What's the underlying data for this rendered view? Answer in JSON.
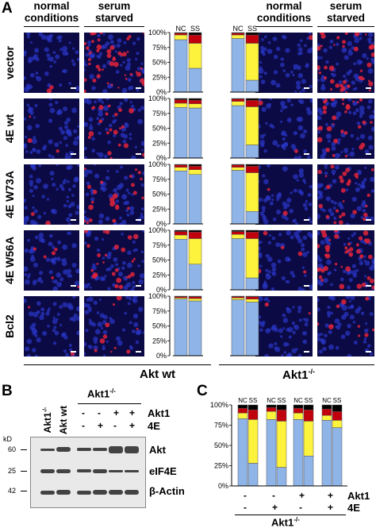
{
  "panel_letters": {
    "a": "A",
    "b": "B",
    "c": "C"
  },
  "panelA": {
    "left_headers": [
      "normal\nconditions",
      "serum\nstarved"
    ],
    "right_headers": [
      "normal\nconditions",
      "serum\nstarved"
    ],
    "rows": [
      "vector",
      "4E wt",
      "4E W73A",
      "4E W56A",
      "Bcl2"
    ],
    "group_labels": {
      "left": "Akt wt",
      "right": "Akt1-/-"
    },
    "colors": {
      "blue": "#8fb4e8",
      "yellow": "#fdf33c",
      "red": "#c0000c",
      "black": "#000000"
    }
  },
  "chart_data": [
    {
      "type": "bar",
      "stacked": true,
      "ylim": [
        0,
        100
      ],
      "yticks": [
        "0%",
        "25%",
        "50%",
        "75%",
        "100%"
      ],
      "panels": [
        {
          "row": "vector",
          "akt_wt": {
            "NC": [
              88,
              8,
              3,
              1
            ],
            "SS": [
              40,
              42,
              14,
              4
            ]
          },
          "akt1_ko": {
            "NC": [
              90,
              6,
              3,
              1
            ],
            "SS": [
              20,
              62,
              14,
              4
            ]
          }
        },
        {
          "row": "4E wt",
          "akt_wt": {
            "NC": [
              85,
              7,
              6,
              2
            ],
            "SS": [
              84,
              7,
              6,
              3
            ]
          },
          "akt1_ko": {
            "NC": [
              88,
              7,
              4,
              1
            ],
            "SS": [
              22,
              64,
              11,
              3
            ]
          }
        },
        {
          "row": "4E W73A",
          "akt_wt": {
            "NC": [
              89,
              6,
              4,
              1
            ],
            "SS": [
              83,
              8,
              6,
              3
            ]
          },
          "akt1_ko": {
            "NC": [
              90,
              5,
              4,
              1
            ],
            "SS": [
              21,
              65,
              11,
              3
            ]
          }
        },
        {
          "row": "4E W56A",
          "akt_wt": {
            "NC": [
              85,
              7,
              6,
              2
            ],
            "SS": [
              43,
              43,
              11,
              3
            ]
          },
          "akt1_ko": {
            "NC": [
              86,
              7,
              5,
              2
            ],
            "SS": [
              20,
              66,
              11,
              3
            ]
          }
        },
        {
          "row": "Bcl2",
          "akt_wt": {
            "NC": [
              95,
              2,
              2,
              1
            ],
            "SS": [
              92,
              4,
              3,
              1
            ]
          },
          "akt1_ko": {
            "NC": [
              94,
              3,
              2,
              1
            ],
            "SS": [
              90,
              5,
              4,
              1
            ]
          }
        }
      ],
      "bar_labels": [
        "NC",
        "SS"
      ]
    },
    {
      "type": "bar",
      "stacked": true,
      "ylim": [
        0,
        100
      ],
      "yticks": [
        "0%",
        "25%",
        "50%",
        "75%",
        "100%"
      ],
      "groups": [
        {
          "akt1": "-",
          "e4": "-",
          "NC": [
            83,
            7,
            6,
            4
          ],
          "SS": [
            28,
            54,
            12,
            6
          ]
        },
        {
          "akt1": "-",
          "e4": "+",
          "NC": [
            82,
            10,
            5,
            3
          ],
          "SS": [
            23,
            57,
            14,
            6
          ]
        },
        {
          "akt1": "+",
          "e4": "-",
          "NC": [
            82,
            8,
            6,
            4
          ],
          "SS": [
            37,
            43,
            14,
            6
          ]
        },
        {
          "akt1": "+",
          "e4": "+",
          "NC": [
            81,
            6,
            8,
            5
          ],
          "SS": [
            72,
            9,
            11,
            8
          ]
        }
      ],
      "bar_labels": [
        "NC",
        "SS"
      ],
      "row_labels": [
        "Akt1",
        "4E"
      ],
      "group_label": "Akt1-/-"
    }
  ],
  "panelB": {
    "lanes": [
      "Akt1-/-",
      "Akt wt"
    ],
    "group": "Akt1-/-",
    "akt1_signs": [
      "-",
      "-",
      "+",
      "+"
    ],
    "e4_signs": [
      "-",
      "+",
      "-",
      "+"
    ],
    "row_labels": [
      "Akt1",
      "4E"
    ],
    "kd_label": "kD",
    "markers": [
      "60",
      "25",
      "42"
    ],
    "bands": [
      "Akt",
      "eIF4E",
      "β-Actin"
    ]
  }
}
